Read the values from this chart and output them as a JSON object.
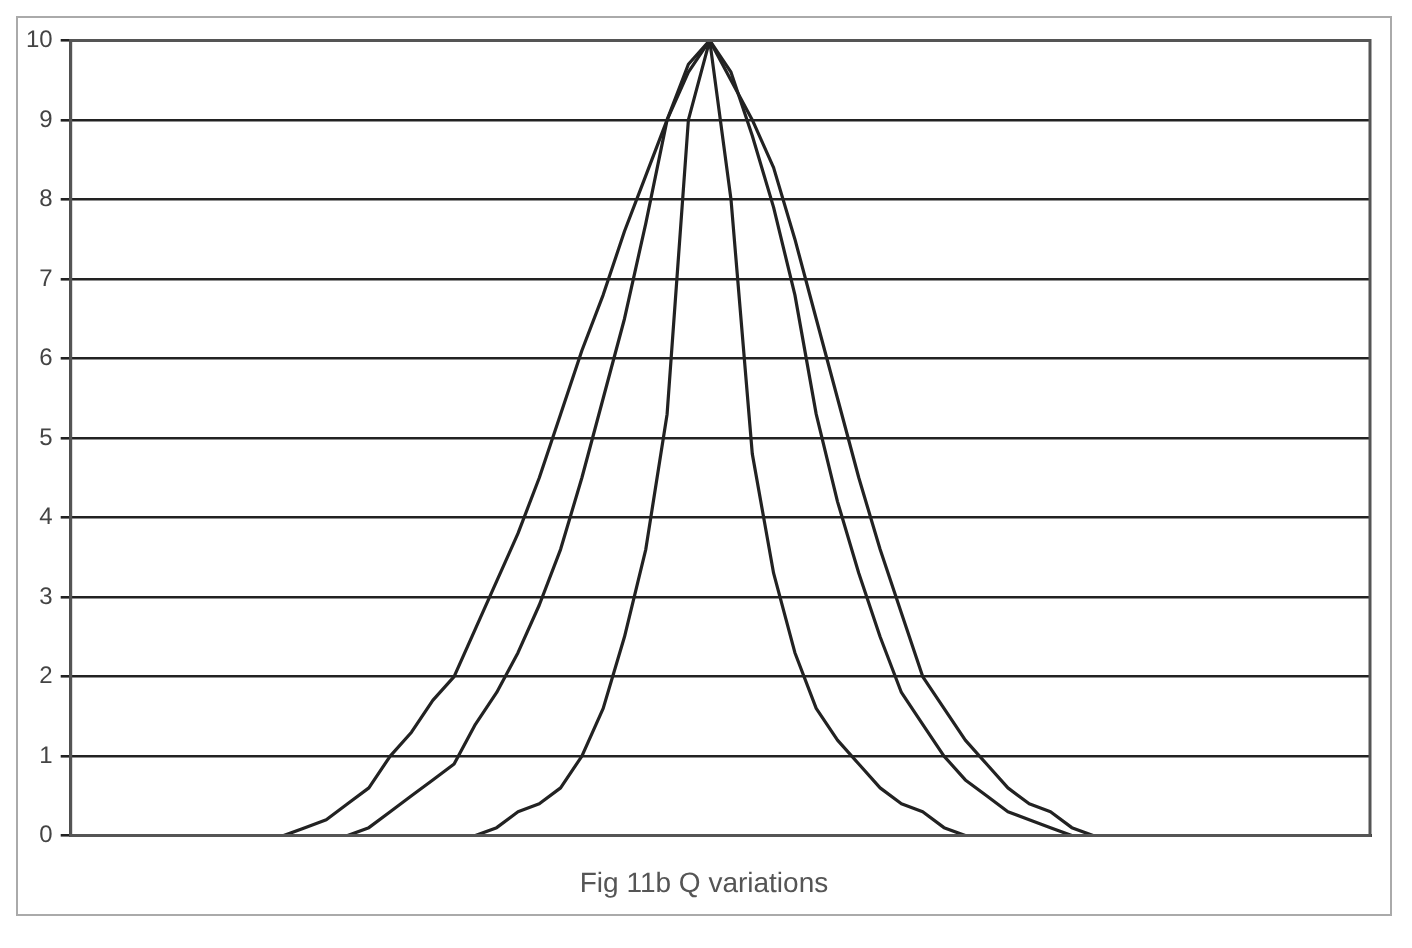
{
  "chart_data": {
    "type": "line",
    "grid": "y",
    "tick_labels": "y",
    "legend": false,
    "marker": "none",
    "line_style": "solid",
    "ylim": [
      0,
      10
    ],
    "yticks": [
      0,
      1,
      2,
      3,
      4,
      5,
      6,
      7,
      8,
      9,
      10
    ],
    "categories": [
      null,
      null,
      null,
      null,
      null,
      null,
      null,
      null,
      null,
      null,
      null,
      null,
      null,
      null,
      null,
      null,
      null,
      null,
      null,
      null,
      null,
      null,
      null,
      null,
      null,
      null,
      null,
      null,
      null,
      null,
      null,
      null,
      null,
      null,
      null,
      null,
      null,
      null,
      null,
      null,
      null,
      null,
      null,
      null,
      null,
      null,
      null,
      null,
      null,
      null,
      null,
      null,
      null,
      null,
      null,
      null,
      null,
      null,
      null,
      null,
      null,
      null
    ],
    "series": [
      {
        "color": "#222222",
        "values": [
          null,
          null,
          null,
          null,
          null,
          null,
          null,
          null,
          null,
          null,
          0,
          0.1,
          0.2,
          0.4,
          0.6,
          1.0,
          1.3,
          1.7,
          2.0,
          2.6,
          3.2,
          3.8,
          4.5,
          5.3,
          6.1,
          6.8,
          7.6,
          8.3,
          9.0,
          9.6,
          10,
          9.5,
          9.0,
          8.4,
          7.5,
          6.5,
          5.5,
          4.5,
          3.6,
          2.8,
          2.0,
          1.6,
          1.2,
          0.9,
          0.6,
          0.4,
          0.3,
          0.1,
          0,
          0,
          null,
          null,
          null,
          null,
          null,
          null,
          null,
          null,
          null,
          null,
          null,
          null
        ]
      },
      {
        "color": "#222222",
        "values": [
          null,
          null,
          null,
          null,
          null,
          null,
          null,
          null,
          null,
          null,
          null,
          null,
          null,
          0,
          0.1,
          0.3,
          0.5,
          0.7,
          0.9,
          1.4,
          1.8,
          2.3,
          2.9,
          3.6,
          4.5,
          5.5,
          6.5,
          7.7,
          9.0,
          9.7,
          10,
          9.6,
          8.8,
          7.9,
          6.8,
          5.3,
          4.2,
          3.3,
          2.5,
          1.8,
          1.4,
          1.0,
          0.7,
          0.5,
          0.3,
          0.2,
          0.1,
          0,
          null,
          null,
          null,
          null,
          null,
          null,
          null,
          null,
          null,
          null,
          null,
          null,
          null,
          null
        ]
      },
      {
        "color": "#222222",
        "values": [
          null,
          null,
          null,
          null,
          null,
          null,
          null,
          null,
          null,
          null,
          null,
          null,
          null,
          null,
          null,
          null,
          null,
          null,
          0,
          0,
          0.1,
          0.3,
          0.4,
          0.6,
          1.0,
          1.6,
          2.5,
          3.6,
          5.3,
          9.0,
          10,
          8.0,
          4.8,
          3.3,
          2.3,
          1.6,
          1.2,
          0.9,
          0.6,
          0.4,
          0.3,
          0.1,
          0,
          null,
          null,
          null,
          null,
          null,
          null,
          null,
          null,
          null,
          null,
          null,
          null,
          null,
          null,
          null,
          null,
          null,
          null,
          null
        ]
      }
    ],
    "annotations": [
      "Fig 11b  Q variations"
    ]
  }
}
